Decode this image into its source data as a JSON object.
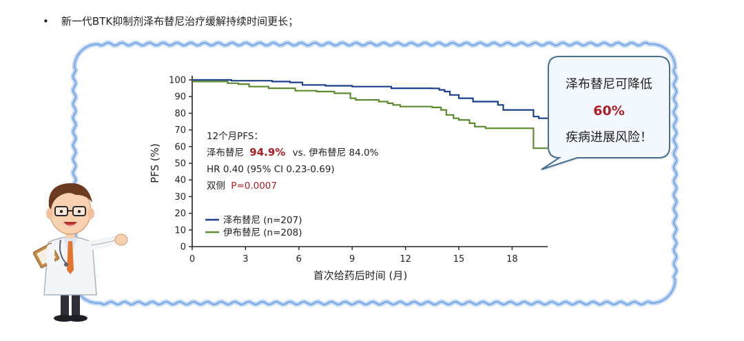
{
  "headline": {
    "bullet": "•",
    "text": "新一代BTK抑制剂泽布替尼治疗缓解持续时间更长；"
  },
  "callout": {
    "line1": "泽布替尼可降低",
    "percent": "60%",
    "line2": "疾病进展风险！"
  },
  "annotation": {
    "title": "12个月PFS：",
    "drug_a": "泽布替尼",
    "drug_a_value": "94.9%",
    "vs_text": "vs. 伊布替尼 84.0%",
    "hr_text": "HR 0.40 (95% CI 0.23-0.69)",
    "p_prefix": "双侧",
    "p_value": "P=0.0007"
  },
  "colors": {
    "zanubrutinib": "#1b3f8b",
    "ibrutinib": "#5d8a2e",
    "highlight_red": "#b01e24",
    "frame_blue": "#8fb8ea",
    "callout_fill": "#f3f8fe",
    "callout_border": "#4a6f8c"
  },
  "chart_data": {
    "type": "line",
    "step": true,
    "xlabel": "首次给药后时间 (月)",
    "ylabel": "PFS (%)",
    "xlim": [
      0,
      20
    ],
    "ylim": [
      0,
      100
    ],
    "xticks": [
      0,
      3,
      6,
      9,
      12,
      15,
      18
    ],
    "yticks": [
      0,
      10,
      20,
      30,
      40,
      50,
      60,
      70,
      80,
      90,
      100
    ],
    "legend_position": "bottom-left",
    "series": [
      {
        "name": "泽布替尼 (n=207)",
        "color_key": "zanubrutinib",
        "points": [
          [
            0,
            100
          ],
          [
            1.5,
            100
          ],
          [
            2.2,
            99.5
          ],
          [
            4.5,
            99
          ],
          [
            5.5,
            98.5
          ],
          [
            6.2,
            97
          ],
          [
            7.5,
            96.5
          ],
          [
            9,
            96
          ],
          [
            11.2,
            95
          ],
          [
            13.5,
            94.9
          ],
          [
            13.9,
            94
          ],
          [
            14.2,
            93
          ],
          [
            14.5,
            91
          ],
          [
            15,
            89
          ],
          [
            15.8,
            87
          ],
          [
            17.2,
            85
          ],
          [
            17.5,
            82
          ],
          [
            19,
            82
          ],
          [
            19.2,
            78
          ],
          [
            19.5,
            77
          ],
          [
            20,
            77
          ]
        ]
      },
      {
        "name": "伊布替尼 (n=208)",
        "color_key": "ibrutinib",
        "points": [
          [
            0,
            99
          ],
          [
            1.6,
            99
          ],
          [
            2,
            98
          ],
          [
            2.6,
            97.5
          ],
          [
            3.2,
            96
          ],
          [
            4.3,
            95
          ],
          [
            5.8,
            93.5
          ],
          [
            7,
            93
          ],
          [
            8,
            92
          ],
          [
            8.9,
            89
          ],
          [
            9.2,
            88
          ],
          [
            10.5,
            87
          ],
          [
            11,
            86
          ],
          [
            11.3,
            85
          ],
          [
            11.7,
            84
          ],
          [
            12.5,
            84
          ],
          [
            13.5,
            83.5
          ],
          [
            14,
            82
          ],
          [
            14.3,
            79
          ],
          [
            14.7,
            77
          ],
          [
            15,
            76
          ],
          [
            15.6,
            74
          ],
          [
            15.9,
            72
          ],
          [
            16.5,
            71
          ],
          [
            19,
            71
          ],
          [
            19.2,
            59
          ],
          [
            20,
            59
          ]
        ]
      }
    ]
  }
}
